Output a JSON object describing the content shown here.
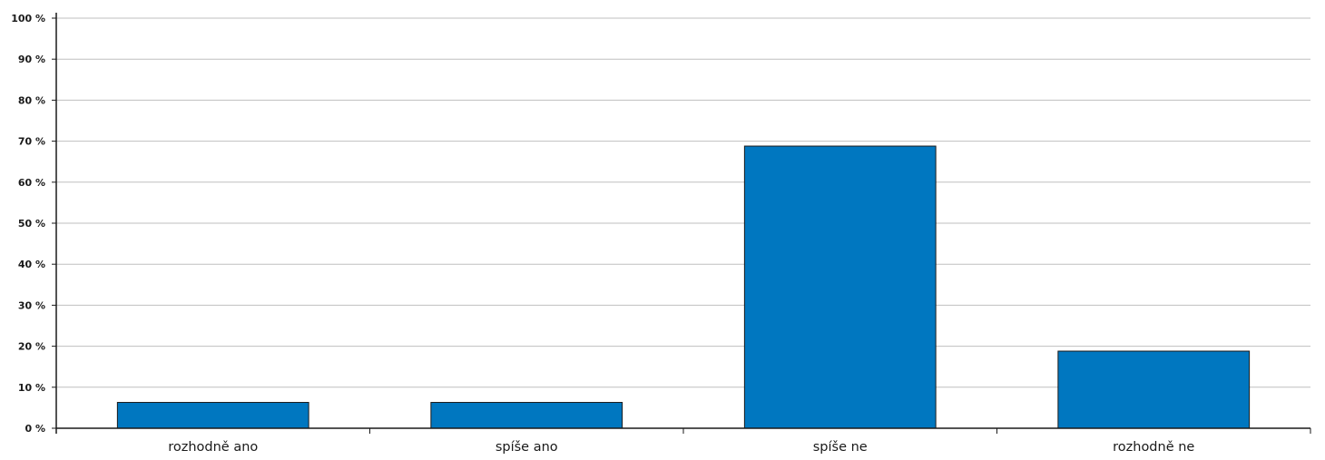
{
  "chart_data": {
    "type": "bar",
    "categories": [
      "rozhodně ano",
      "spíše ano",
      "spíše ne",
      "rozhodně ne"
    ],
    "values": [
      6.3,
      6.3,
      68.8,
      18.8
    ],
    "title": "",
    "xlabel": "",
    "ylabel": "",
    "ylim": [
      0,
      100
    ],
    "yticks": [
      0,
      10,
      20,
      30,
      40,
      50,
      60,
      70,
      80,
      90,
      100
    ],
    "ytick_labels": [
      "0 %",
      "10 %",
      "20 %",
      "30 %",
      "40 %",
      "50 %",
      "60 %",
      "70 %",
      "80 %",
      "90 %",
      "100 %"
    ],
    "grid": true,
    "legend": "none",
    "bar_color": "#0077c0",
    "bar_edge_color": "#1a1a1a",
    "grid_color": "#bfbfbf"
  }
}
